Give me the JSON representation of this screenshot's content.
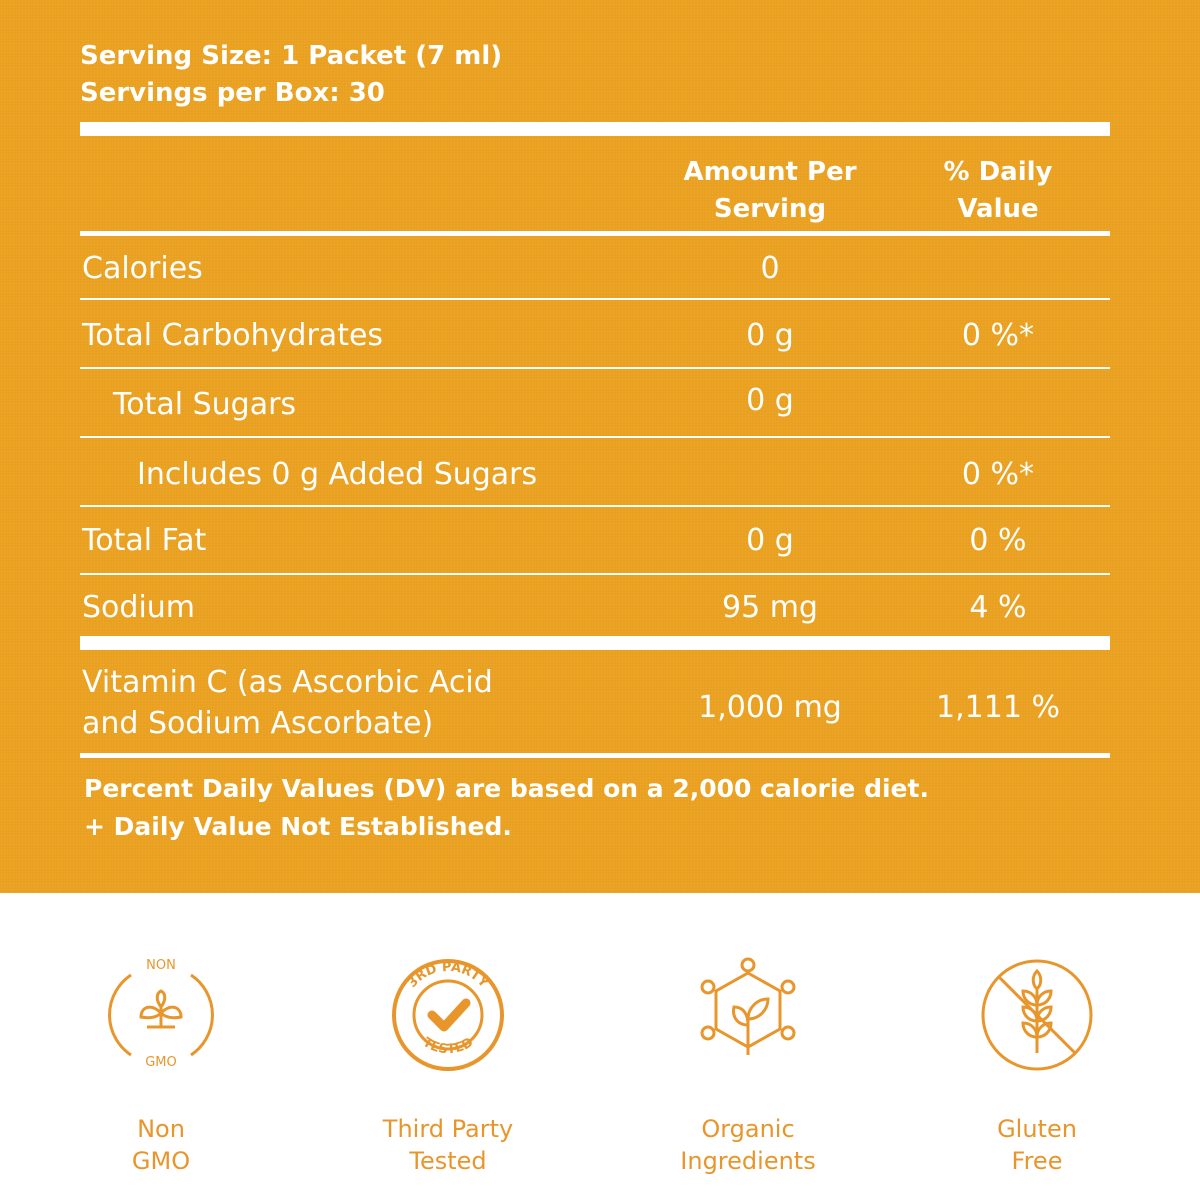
{
  "serving": {
    "size": "Serving Size: 1 Packet (7 ml)",
    "per_box": "Servings per Box: 30"
  },
  "header": {
    "amount_line1": "Amount Per",
    "amount_line2": "Serving",
    "dv_line1": "% Daily",
    "dv_line2": "Value"
  },
  "rows": [
    {
      "label": "Calories",
      "amount": "0",
      "dv": ""
    },
    {
      "label": "Total Carbohydrates",
      "amount": "0 g",
      "dv": "0 %*"
    },
    {
      "label": "Total Sugars",
      "amount": "0 g",
      "dv": ""
    },
    {
      "label": "Includes 0 g Added Sugars",
      "amount": "",
      "dv": "0 %*"
    },
    {
      "label": "Total Fat",
      "amount": "0 g",
      "dv": "0 %"
    },
    {
      "label": "Sodium",
      "amount": "95 mg",
      "dv": "4 %"
    }
  ],
  "vitamin": {
    "label_line1": "Vitamin C (as Ascorbic Acid",
    "label_line2": "and Sodium  Ascorbate)",
    "amount": "1,000 mg",
    "dv": "1,111 %"
  },
  "footnote": {
    "line1": "Percent Daily Values (DV) are based on a 2,000 calorie diet.",
    "line2": "+ Daily Value Not Established."
  },
  "badges": [
    {
      "icon": "non-gmo-icon",
      "icon_top": "NON",
      "icon_bottom": "GMO",
      "line1": "Non",
      "line2": "GMO"
    },
    {
      "icon": "third-party-tested-icon",
      "icon_top": "3RD PARTY",
      "icon_bottom": "TESTED",
      "line1": "Third Party",
      "line2": "Tested"
    },
    {
      "icon": "organic-ingredients-icon",
      "line1": "Organic",
      "line2": "Ingredients"
    },
    {
      "icon": "gluten-free-icon",
      "line1": "Gluten",
      "line2": "Free"
    }
  ],
  "colors": {
    "panel": "#eaa01f",
    "icon_accent": "#e8962c",
    "text_on_panel": "#ffffff"
  }
}
